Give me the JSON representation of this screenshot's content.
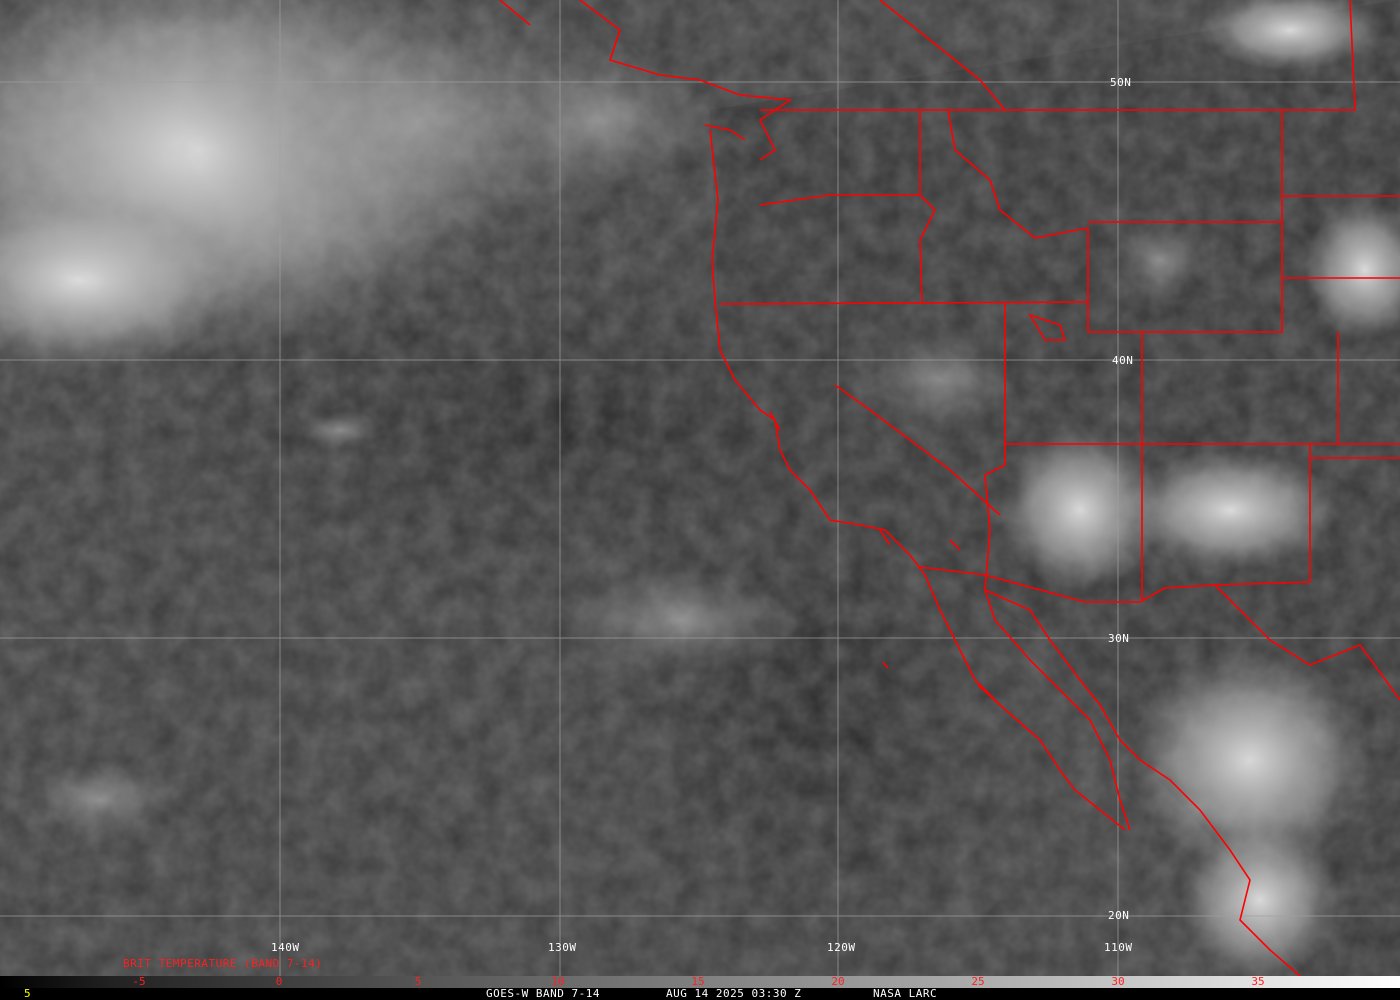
{
  "map": {
    "latitude_labels": [
      "50N",
      "40N",
      "30N",
      "20N"
    ],
    "longitude_labels": [
      "140W",
      "130W",
      "120W",
      "110W"
    ],
    "border_color": "#ff0000",
    "grid_color": "#a0a0a0"
  },
  "colorbar": {
    "title": "BRIT TEMPERATURE (BAND 7-14)",
    "ticks": [
      "-5",
      "0",
      "5",
      "10",
      "15",
      "20",
      "25",
      "30",
      "35"
    ],
    "left_value": "5"
  },
  "footer": {
    "satellite": "GOES-W BAND 7-14",
    "datetime": "AUG 14 2025 03:30 Z",
    "credit": "NASA LARC"
  }
}
